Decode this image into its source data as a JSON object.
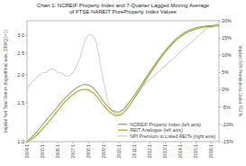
{
  "chart_data": {
    "type": "line",
    "title": "Chart 1: NCREIF Property Index and 7-Quarter Lagged Moving Average\nof FTSE NAREIT PureProperty Index Values",
    "ylabel": "Implied Net Total Return (logarithmic axis, 2004Q1=1)",
    "y2label": "Implied NPI Premium to Listed REITs",
    "categories": [
      "2004:1",
      null,
      null,
      null,
      "2005:1",
      null,
      null,
      null,
      "2006:1",
      null,
      null,
      null,
      "2007:1",
      null,
      null,
      null,
      "2008:1",
      null,
      null,
      null,
      "2009:1",
      null,
      null,
      null,
      "2010:1",
      null,
      null,
      null,
      "2011:1",
      null,
      null,
      null,
      "2012:1",
      null,
      null,
      null,
      "2013:1",
      null,
      null,
      null,
      "2014:1",
      null,
      null,
      null,
      "2015:1",
      null,
      null,
      null,
      "2016:1",
      null,
      null
    ],
    "series": [
      {
        "name": "NCREIF Property Index (left axis)",
        "color": "#9aaa80",
        "values": [
          1.0,
          1.04,
          1.08,
          1.13,
          1.19,
          1.25,
          1.31,
          1.37,
          1.44,
          1.51,
          1.58,
          1.64,
          1.7,
          1.75,
          1.79,
          1.81,
          1.8,
          1.76,
          1.69,
          1.6,
          1.51,
          1.44,
          1.39,
          1.36,
          1.36,
          1.39,
          1.45,
          1.53,
          1.62,
          1.72,
          1.83,
          1.94,
          2.06,
          2.18,
          2.31,
          2.44,
          2.57,
          2.69,
          2.81,
          2.92,
          3.01,
          3.09,
          3.16,
          3.21,
          3.25,
          3.28,
          3.3,
          3.32,
          3.33,
          3.34,
          3.35
        ]
      },
      {
        "name": "REIT Analogue (left axis)",
        "color": "#b8a832",
        "values": [
          1.0,
          1.02,
          1.05,
          1.09,
          1.14,
          1.19,
          1.25,
          1.31,
          1.38,
          1.45,
          1.52,
          1.58,
          1.63,
          1.68,
          1.71,
          1.72,
          1.71,
          1.67,
          1.61,
          1.53,
          1.45,
          1.39,
          1.34,
          1.31,
          1.31,
          1.34,
          1.4,
          1.48,
          1.57,
          1.67,
          1.78,
          1.9,
          2.02,
          2.14,
          2.27,
          2.4,
          2.53,
          2.65,
          2.77,
          2.88,
          2.97,
          3.05,
          3.12,
          3.17,
          3.21,
          3.24,
          3.27,
          3.29,
          3.3,
          3.31,
          3.32
        ]
      },
      {
        "name": "NPI Premium to Listed REITs (right axis)",
        "color": "#d8d4cc",
        "axis": "y2",
        "values": [
          0.0,
          0.02,
          0.03,
          0.04,
          0.05,
          0.05,
          0.06,
          0.06,
          0.05,
          0.05,
          0.04,
          0.04,
          0.05,
          0.07,
          0.1,
          0.14,
          0.16,
          0.16,
          0.14,
          0.08,
          0.02,
          -0.03,
          -0.06,
          -0.07,
          -0.07,
          -0.06,
          -0.04,
          -0.03,
          -0.02,
          -0.01,
          0.01,
          0.02,
          0.03,
          0.04,
          0.05,
          0.06,
          0.07,
          0.08,
          0.09,
          0.1,
          0.11,
          0.12,
          0.13,
          0.14,
          0.15,
          0.16,
          0.17,
          0.18,
          0.18,
          0.19,
          0.19
        ]
      }
    ],
    "log": "y",
    "ylim": [
      1.0,
      3.5
    ],
    "yticks": [
      {
        "value": 1.0,
        "label": "1.0"
      },
      1.5,
      {
        "value": 2.0,
        "label": "2.0"
      },
      2.5,
      {
        "value": 3.0,
        "label": "3.0"
      }
    ],
    "y2lim": [
      -0.15,
      0.2
    ],
    "y2ticks": [
      {
        "value": -0.15,
        "label": "-15%"
      },
      {
        "value": -0.1,
        "label": "-10%"
      },
      {
        "value": -0.05,
        "label": "-5%"
      },
      {
        "value": 0.0,
        "label": "0%"
      },
      {
        "value": 0.05,
        "label": "5%"
      },
      {
        "value": 0.1,
        "label": "10%"
      },
      {
        "value": 0.15,
        "label": "15%"
      },
      {
        "value": 0.2,
        "label": "20%"
      }
    ],
    "grid": false,
    "legend": "lower right"
  }
}
